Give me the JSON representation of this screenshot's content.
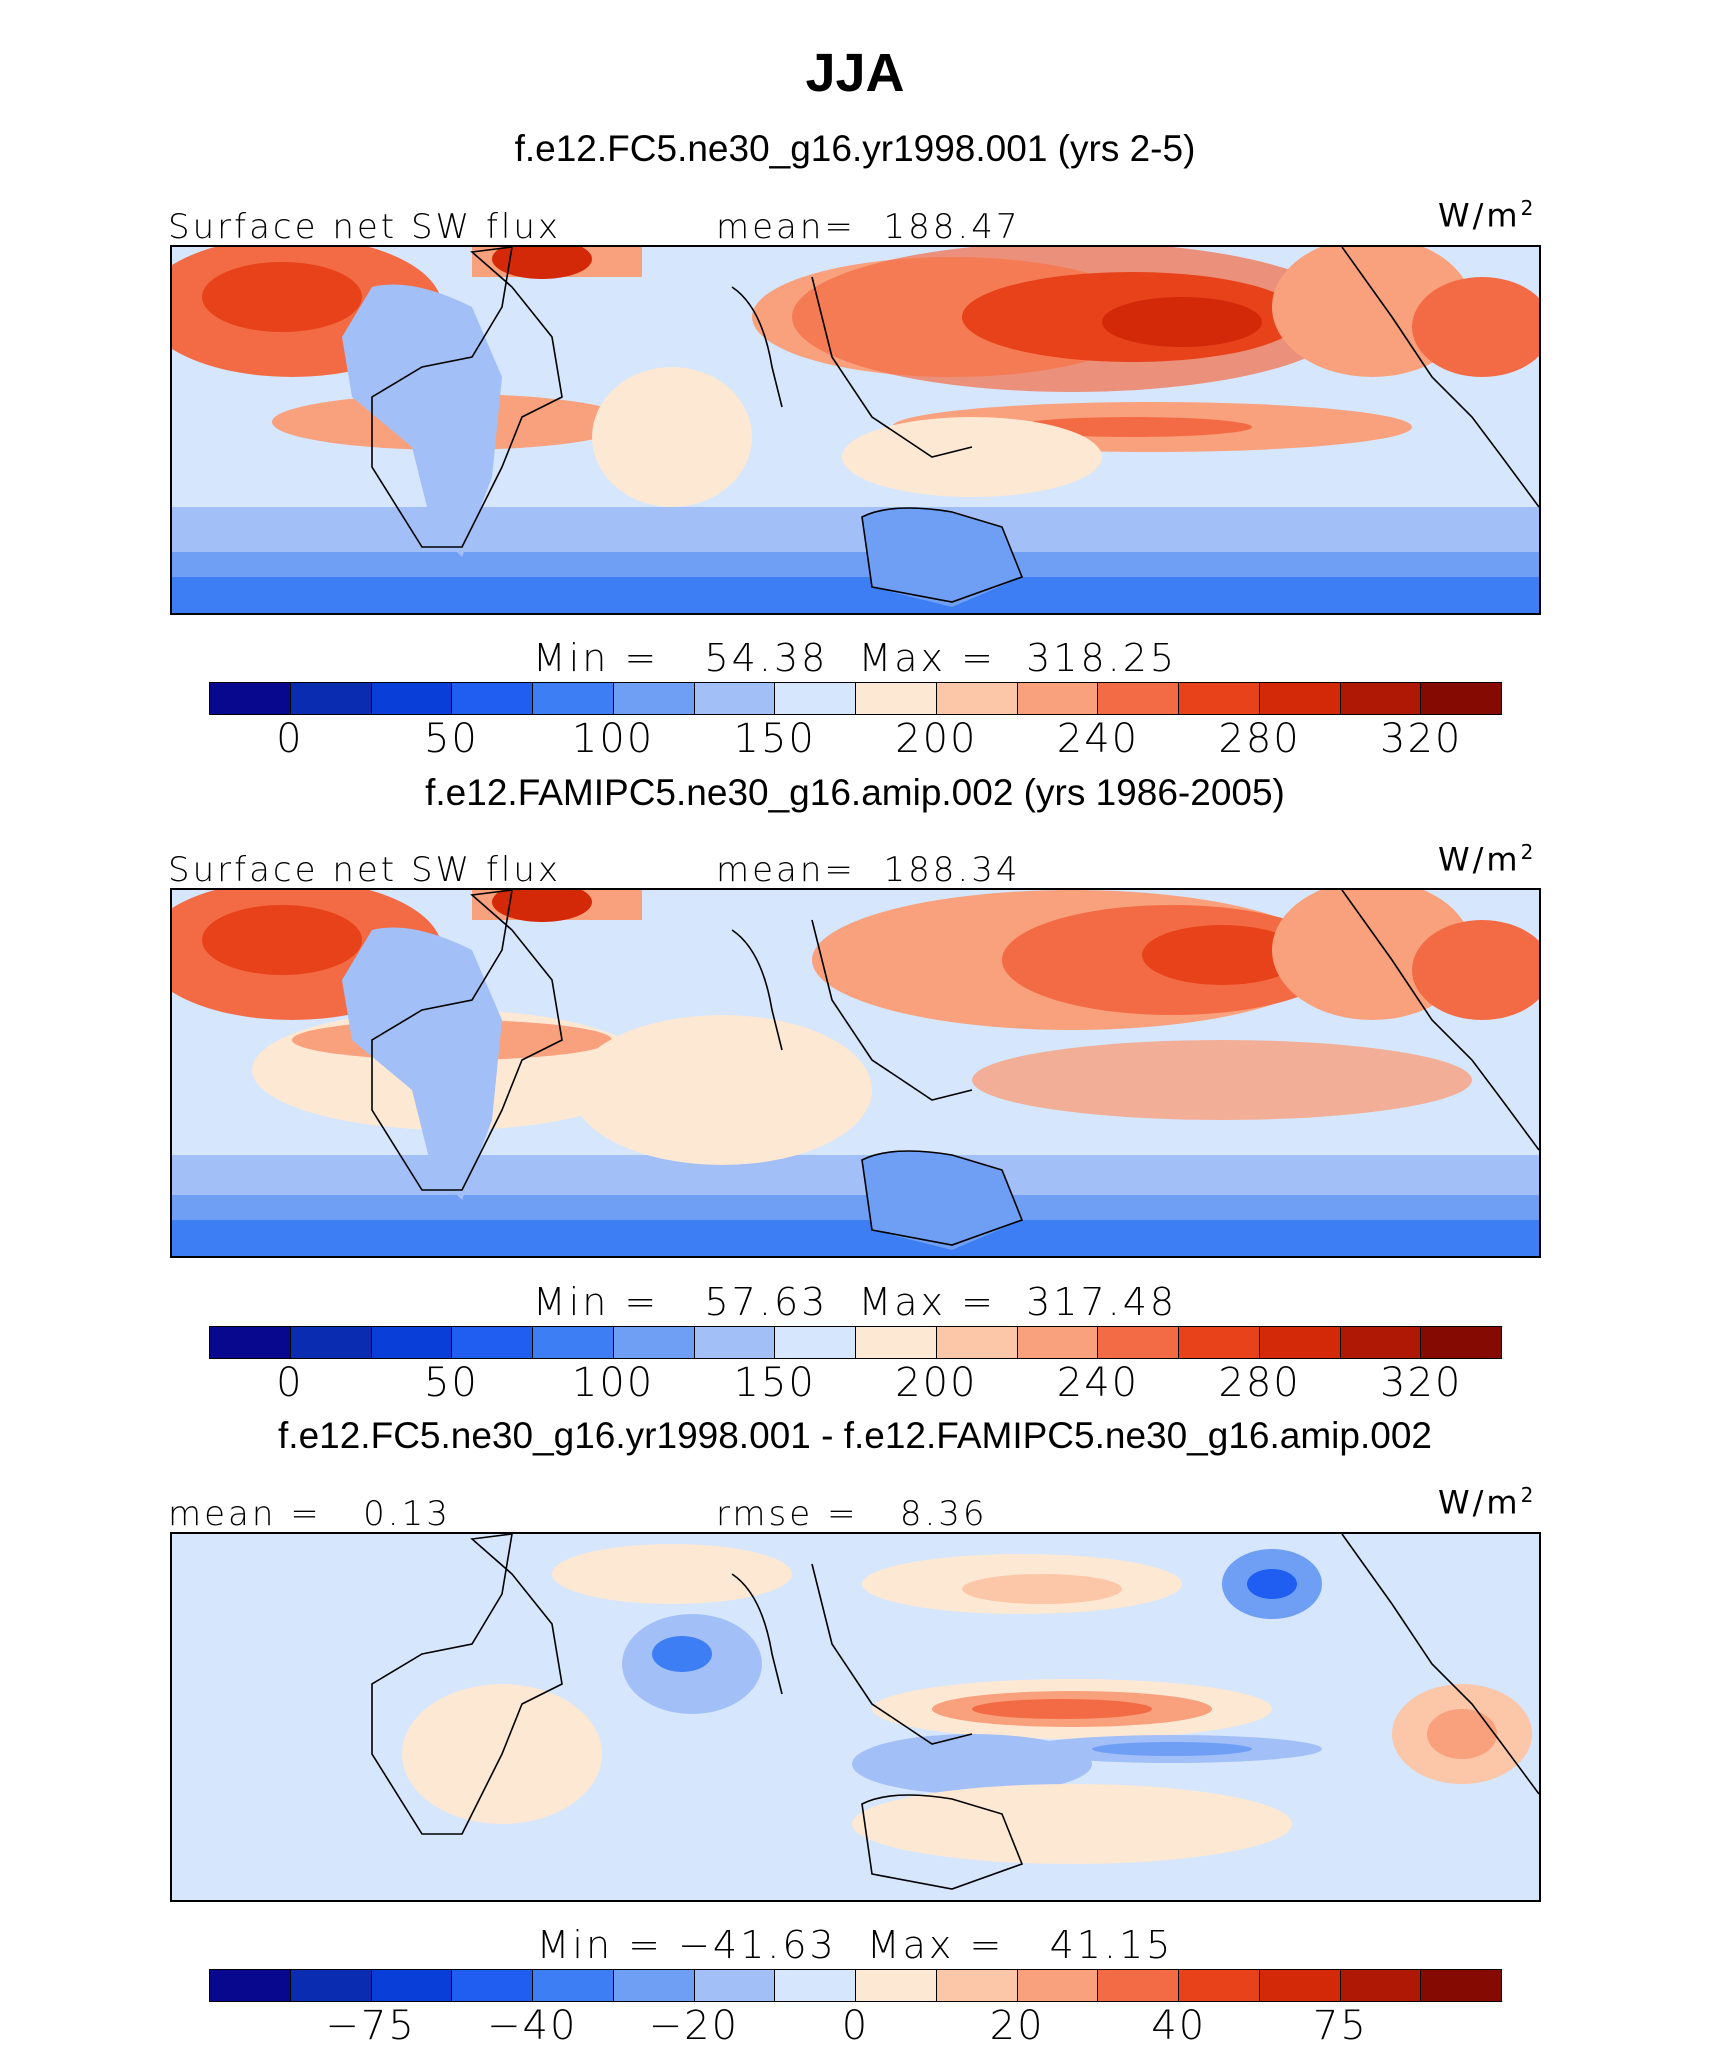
{
  "title": "JJA",
  "colors": {
    "levels": [
      "#08088f",
      "#0a2cb0",
      "#0a3ed8",
      "#1f5ef0",
      "#3d7ef5",
      "#6f9ff5",
      "#a2c0f7",
      "#d6e6fc",
      "#fde8d4",
      "#fcc6a8",
      "#f9a07c",
      "#f36b45",
      "#e74219",
      "#d42908",
      "#b01806",
      "#850a02"
    ]
  },
  "chart_data": [
    {
      "type": "heatmap",
      "subtitle": "f.e12.FC5.ne30_g16.yr1998.001 (yrs 2-5)",
      "left_label": "Surface net SW flux",
      "center_label": "mean=  188.47",
      "units": "W/m",
      "units_sup": "2",
      "minmax": "Min =   54.38  Max =  318.25",
      "colorbar_ticks": [
        "0",
        "50",
        "100",
        "150",
        "200",
        "240",
        "280",
        "320"
      ],
      "colorbar_tick_positions": [
        1,
        3,
        5,
        7,
        9,
        11,
        13,
        15
      ],
      "min": 54.38,
      "max": 318.25,
      "mean": 188.47
    },
    {
      "type": "heatmap",
      "subtitle": "f.e12.FAMIPC5.ne30_g16.amip.002 (yrs 1986-2005)",
      "left_label": "Surface net SW flux",
      "center_label": "mean=  188.34",
      "units": "W/m",
      "units_sup": "2",
      "minmax": "Min =   57.63  Max =  317.48",
      "colorbar_ticks": [
        "0",
        "50",
        "100",
        "150",
        "200",
        "240",
        "280",
        "320"
      ],
      "colorbar_tick_positions": [
        1,
        3,
        5,
        7,
        9,
        11,
        13,
        15
      ],
      "min": 57.63,
      "max": 317.48,
      "mean": 188.34
    },
    {
      "type": "heatmap",
      "subtitle": "f.e12.FC5.ne30_g16.yr1998.001 - f.e12.FAMIPC5.ne30_g16.amip.002",
      "left_label": "mean =   0.13",
      "center_label": "rmse =   8.36",
      "units": "W/m",
      "units_sup": "2",
      "minmax": "Min = −41.63  Max =   41.15",
      "colorbar_ticks": [
        "−75",
        "−40",
        "−20",
        "0",
        "20",
        "40",
        "75"
      ],
      "colorbar_tick_positions": [
        2,
        4,
        6,
        8,
        10,
        12,
        14
      ],
      "min": -41.63,
      "max": 41.15,
      "mean": 0.13,
      "rmse": 8.36
    }
  ]
}
